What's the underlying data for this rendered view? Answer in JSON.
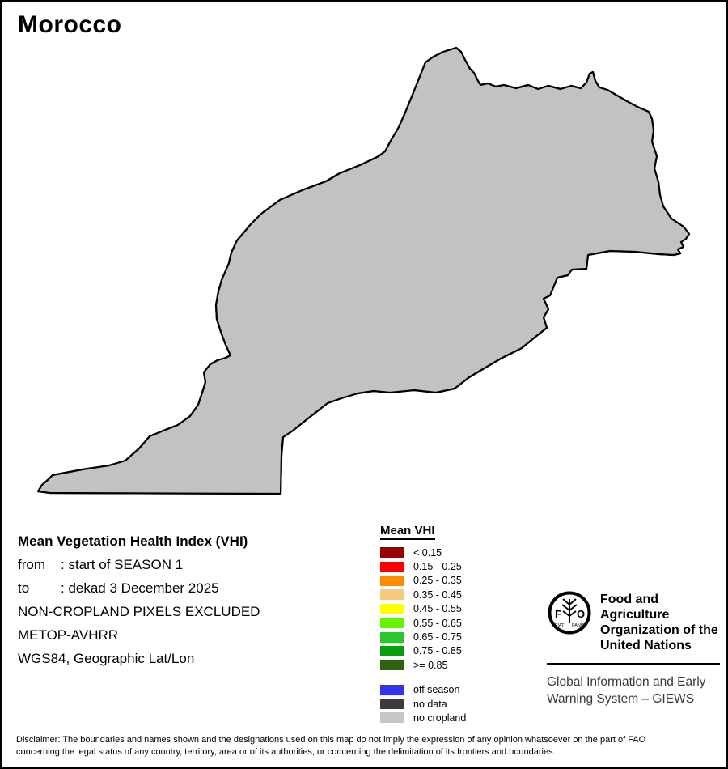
{
  "title": "Morocco",
  "info": {
    "heading": "Mean Vegetation Health Index (VHI)",
    "rows": [
      {
        "label": "from",
        "value": ": start of SEASON 1"
      },
      {
        "label": "to",
        "value": ": dekad 3 December 2025"
      }
    ],
    "lines": [
      "NON-CROPLAND PIXELS EXCLUDED",
      "METOP-AVHRR",
      "WGS84, Geographic Lat/Lon"
    ]
  },
  "legend": {
    "title": "Mean VHI",
    "classes": [
      {
        "label": "< 0.15",
        "color": "#990000"
      },
      {
        "label": "0.15 - 0.25",
        "color": "#fa0000"
      },
      {
        "label": "0.25 - 0.35",
        "color": "#ff8c00"
      },
      {
        "label": "0.35 - 0.45",
        "color": "#f9c97c"
      },
      {
        "label": "0.45 - 0.55",
        "color": "#ffff00"
      },
      {
        "label": "0.55 - 0.65",
        "color": "#63f400"
      },
      {
        "label": "0.65 - 0.75",
        "color": "#2ec62e"
      },
      {
        "label": "0.75 - 0.85",
        "color": "#0a9e0a"
      },
      {
        "label": ">= 0.85",
        "color": "#2f610f"
      }
    ],
    "extra": [
      {
        "label": "off season",
        "color": "#3333ee"
      },
      {
        "label": "no data",
        "color": "#3a3a3a"
      },
      {
        "label": "no cropland",
        "color": "#c6c6c6"
      }
    ]
  },
  "fao": {
    "logo_letters_left": "F",
    "logo_letters_right": "O",
    "logo_motto_left": "FIAT",
    "logo_motto_right": "PANIS",
    "org_lines": [
      "Food and Agriculture",
      "Organization of the",
      "United Nations"
    ],
    "giews_lines": [
      "Global Information and Early",
      "Warning System – GIEWS"
    ]
  },
  "disclaimer": {
    "line1": "Disclaimer: The boundaries and names shown and the designations used on this map do not imply the expression of any opinion whatsoever on the part of FAO",
    "line2": "concerning the legal status of any country, territory, area or of its authorities, or concerning the delimitation of its frontiers and boundaries."
  },
  "map": {
    "land_color": "#c2c2c2",
    "sea_color": "#ffffff",
    "border_color": "#000000",
    "clusters": [
      [
        "#f9c97c",
        430,
        255,
        130,
        95,
        950
      ],
      [
        "#f9c97c",
        330,
        345,
        65,
        60,
        420
      ],
      [
        "#f9c97c",
        295,
        300,
        45,
        45,
        280
      ],
      [
        "#f9c97c",
        550,
        120,
        60,
        35,
        280
      ],
      [
        "#f9c97c",
        620,
        130,
        45,
        25,
        140
      ],
      [
        "#f9c97c",
        480,
        350,
        60,
        35,
        190
      ],
      [
        "#f9c97c",
        300,
        420,
        40,
        35,
        140
      ],
      [
        "#f9c97c",
        745,
        130,
        55,
        25,
        190
      ],
      [
        "#f9c97c",
        700,
        185,
        40,
        18,
        110
      ],
      [
        "#ffff00",
        480,
        215,
        95,
        70,
        800
      ],
      [
        "#ffff00",
        545,
        240,
        50,
        40,
        320
      ],
      [
        "#ffff00",
        420,
        280,
        65,
        45,
        380
      ],
      [
        "#ffff00",
        560,
        105,
        45,
        20,
        180
      ],
      [
        "#ffff00",
        595,
        140,
        35,
        25,
        140
      ],
      [
        "#ffff00",
        380,
        340,
        55,
        35,
        190
      ],
      [
        "#ffff00",
        350,
        425,
        35,
        18,
        70
      ],
      [
        "#ffff00",
        420,
        385,
        40,
        20,
        70
      ],
      [
        "#ffff00",
        660,
        135,
        30,
        15,
        60
      ],
      [
        "#ffff00",
        740,
        145,
        35,
        20,
        90
      ],
      [
        "#ffff00",
        775,
        135,
        30,
        18,
        70
      ],
      [
        "#ffff00",
        605,
        230,
        25,
        18,
        60
      ],
      [
        "#ffff00",
        460,
        455,
        25,
        12,
        35
      ],
      [
        "#ffff00",
        330,
        500,
        30,
        20,
        45
      ],
      [
        "#ff8c00",
        350,
        300,
        70,
        55,
        420
      ],
      [
        "#ff8c00",
        310,
        385,
        45,
        40,
        240
      ],
      [
        "#ff8c00",
        300,
        450,
        50,
        40,
        260
      ],
      [
        "#ff8c00",
        365,
        460,
        60,
        30,
        200
      ],
      [
        "#ff8c00",
        420,
        335,
        55,
        35,
        200
      ],
      [
        "#ff8c00",
        595,
        95,
        45,
        15,
        110
      ],
      [
        "#ff8c00",
        650,
        115,
        40,
        18,
        140
      ],
      [
        "#ff8c00",
        720,
        125,
        55,
        22,
        230
      ],
      [
        "#ff8c00",
        780,
        155,
        40,
        28,
        200
      ],
      [
        "#ff8c00",
        735,
        190,
        32,
        14,
        120
      ],
      [
        "#ff8c00",
        690,
        235,
        45,
        30,
        90
      ],
      [
        "#ff8c00",
        830,
        255,
        14,
        20,
        60
      ],
      [
        "#ff8c00",
        805,
        185,
        25,
        20,
        90
      ],
      [
        "#ff8c00",
        330,
        505,
        35,
        25,
        80
      ],
      [
        "#ff8c00",
        240,
        545,
        15,
        10,
        25
      ],
      [
        "#ff8c00",
        450,
        420,
        35,
        20,
        90
      ],
      [
        "#ff8c00",
        285,
        360,
        30,
        25,
        120
      ],
      [
        "#ff8c00",
        620,
        165,
        30,
        20,
        90
      ],
      [
        "#ff8c00",
        560,
        90,
        30,
        12,
        70
      ],
      [
        "#fa0000",
        490,
        305,
        45,
        25,
        240
      ],
      [
        "#fa0000",
        455,
        332,
        28,
        16,
        110
      ],
      [
        "#fa0000",
        795,
        170,
        35,
        22,
        130
      ],
      [
        "#fa0000",
        820,
        225,
        12,
        18,
        45
      ],
      [
        "#fa0000",
        305,
        395,
        40,
        30,
        130
      ],
      [
        "#fa0000",
        290,
        428,
        22,
        13,
        60
      ],
      [
        "#fa0000",
        525,
        282,
        20,
        12,
        55
      ],
      [
        "#fa0000",
        620,
        108,
        28,
        9,
        45
      ],
      [
        "#fa0000",
        680,
        112,
        22,
        8,
        35
      ],
      [
        "#fa0000",
        743,
        187,
        18,
        8,
        40
      ],
      [
        "#fa0000",
        430,
        362,
        22,
        13,
        55
      ],
      [
        "#fa0000",
        835,
        148,
        9,
        9,
        22
      ],
      [
        "#fa0000",
        770,
        130,
        20,
        10,
        35
      ],
      [
        "#fa0000",
        510,
        330,
        15,
        10,
        35
      ],
      [
        "#990000",
        315,
        425,
        18,
        10,
        40
      ],
      [
        "#990000",
        483,
        312,
        13,
        7,
        22
      ],
      [
        "#990000",
        257,
        368,
        9,
        7,
        18
      ],
      [
        "#990000",
        298,
        412,
        10,
        6,
        14
      ],
      [
        "#63f400",
        497,
        247,
        55,
        40,
        270
      ],
      [
        "#63f400",
        462,
        292,
        32,
        22,
        120
      ],
      [
        "#63f400",
        528,
        162,
        25,
        18,
        100
      ],
      [
        "#63f400",
        482,
        192,
        30,
        20,
        110
      ],
      [
        "#63f400",
        512,
        282,
        20,
        12,
        45
      ],
      [
        "#63f400",
        545,
        210,
        25,
        18,
        70
      ],
      [
        "#2ec62e",
        517,
        207,
        42,
        28,
        200
      ],
      [
        "#2ec62e",
        492,
        267,
        28,
        18,
        90
      ],
      [
        "#2ec62e",
        553,
        152,
        20,
        14,
        60
      ],
      [
        "#2ec62e",
        470,
        242,
        24,
        16,
        70
      ],
      [
        "#2ec62e",
        533,
        250,
        18,
        12,
        45
      ],
      [
        "#0a9e0a",
        527,
        183,
        28,
        18,
        90
      ],
      [
        "#0a9e0a",
        503,
        227,
        18,
        13,
        55
      ],
      [
        "#0a9e0a",
        547,
        252,
        13,
        9,
        28
      ],
      [
        "#0a9e0a",
        512,
        167,
        15,
        10,
        35
      ],
      [
        "#2f610f",
        537,
        172,
        13,
        9,
        28
      ],
      [
        "#2f610f",
        512,
        212,
        11,
        7,
        22
      ],
      [
        "#3a3a3a",
        612,
        170,
        42,
        28,
        420
      ],
      [
        "#3a3a3a",
        545,
        122,
        16,
        12,
        70
      ],
      [
        "#3a3a3a",
        572,
        147,
        13,
        10,
        55
      ],
      [
        "#3a3a3a",
        632,
        207,
        22,
        12,
        55
      ],
      [
        "#3a3a3a",
        562,
        252,
        15,
        10,
        45
      ],
      [
        "#3a3a3a",
        530,
        103,
        10,
        7,
        28
      ],
      [
        "#3a3a3a",
        585,
        215,
        18,
        10,
        45
      ],
      [
        "#3a3a3a",
        650,
        140,
        12,
        8,
        30
      ],
      [
        "#3333ee",
        617,
        130,
        13,
        17,
        80
      ],
      [
        "#3333ee",
        592,
        248,
        22,
        38,
        300
      ],
      [
        "#3333ee",
        577,
        270,
        20,
        25,
        150
      ],
      [
        "#3333ee",
        556,
        300,
        17,
        22,
        140
      ],
      [
        "#3333ee",
        515,
        348,
        22,
        22,
        120
      ],
      [
        "#3333ee",
        478,
        385,
        14,
        13,
        55
      ],
      [
        "#3333ee",
        625,
        295,
        30,
        40,
        70
      ],
      [
        "#3333ee",
        640,
        190,
        12,
        25,
        60
      ],
      [
        "#3333ee",
        537,
        322,
        13,
        12,
        55
      ],
      [
        "#3333ee",
        400,
        365,
        18,
        12,
        45
      ],
      [
        "#3333ee",
        410,
        395,
        15,
        12,
        45
      ],
      [
        "#ffffff",
        592,
        183,
        5,
        4,
        8
      ],
      [
        "#ffffff",
        505,
        298,
        3,
        3,
        6
      ]
    ]
  }
}
